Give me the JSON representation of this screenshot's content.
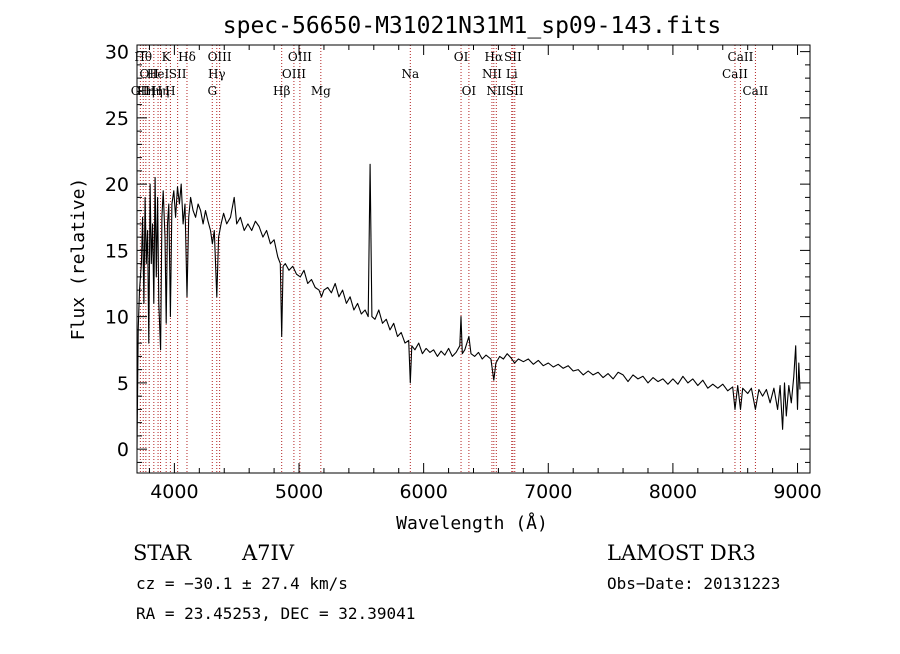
{
  "chart_data": {
    "type": "line",
    "title": "spec-56650-M31021N31M1_sp09-143.fits",
    "xlabel": "Wavelength (Å)",
    "ylabel": "Flux (relative)",
    "xlim": [
      3700,
      9100
    ],
    "ylim": [
      -1.8,
      30.5
    ],
    "xticks": [
      4000,
      5000,
      6000,
      7000,
      8000,
      9000
    ],
    "yticks": [
      0,
      5,
      10,
      15,
      20,
      25,
      30
    ],
    "lines": [
      {
        "wave": 3727,
        "label": "OII",
        "row": 2
      },
      {
        "wave": 3750,
        "label": "Hθ",
        "row": 0
      },
      {
        "wave": 3771,
        "label": "Hη",
        "row": 2
      },
      {
        "wave": 3798,
        "label": "OII",
        "row": 1
      },
      {
        "wave": 3835,
        "label": "Hη",
        "row": 2
      },
      {
        "wave": 3869,
        "label": "HeI",
        "row": 1
      },
      {
        "wave": 3889,
        "label": "Hη",
        "row": 2
      },
      {
        "wave": 3934,
        "label": "K",
        "row": 0
      },
      {
        "wave": 3968,
        "label": "H",
        "row": 2
      },
      {
        "wave": 4026,
        "label": "SII",
        "row": 1
      },
      {
        "wave": 4101,
        "label": "Hδ",
        "row": 0
      },
      {
        "wave": 4304,
        "label": "G",
        "row": 2
      },
      {
        "wave": 4340,
        "label": "Hγ",
        "row": 1
      },
      {
        "wave": 4363,
        "label": "OIII",
        "row": 0
      },
      {
        "wave": 4861,
        "label": "Hβ",
        "row": 2
      },
      {
        "wave": 4959,
        "label": "OIII",
        "row": 1
      },
      {
        "wave": 5007,
        "label": "OIII",
        "row": 0
      },
      {
        "wave": 5175,
        "label": "Mg",
        "row": 2
      },
      {
        "wave": 5893,
        "label": "Na",
        "row": 1
      },
      {
        "wave": 6300,
        "label": "OI",
        "row": 0
      },
      {
        "wave": 6363,
        "label": "OI",
        "row": 2
      },
      {
        "wave": 6548,
        "label": "NII",
        "row": 1
      },
      {
        "wave": 6563,
        "label": "Hα",
        "row": 0
      },
      {
        "wave": 6583,
        "label": "NII",
        "row": 2
      },
      {
        "wave": 6707,
        "label": "Li",
        "row": 1
      },
      {
        "wave": 6716,
        "label": "SII",
        "row": 0
      },
      {
        "wave": 6731,
        "label": "SII",
        "row": 2
      },
      {
        "wave": 8498,
        "label": "CaII",
        "row": 1
      },
      {
        "wave": 8542,
        "label": "CaII",
        "row": 0
      },
      {
        "wave": 8662,
        "label": "CaII",
        "row": 2
      }
    ],
    "series": [
      {
        "name": "flux",
        "points": [
          [
            3700,
            0.0
          ],
          [
            3710,
            9.0
          ],
          [
            3720,
            12.0
          ],
          [
            3735,
            14.0
          ],
          [
            3745,
            17.5
          ],
          [
            3755,
            11.0
          ],
          [
            3765,
            19.0
          ],
          [
            3775,
            14.0
          ],
          [
            3785,
            16.5
          ],
          [
            3795,
            8.0
          ],
          [
            3805,
            20.0
          ],
          [
            3815,
            14.0
          ],
          [
            3825,
            17.0
          ],
          [
            3835,
            11.0
          ],
          [
            3845,
            20.5
          ],
          [
            3855,
            13.0
          ],
          [
            3865,
            19.0
          ],
          [
            3875,
            11.0
          ],
          [
            3889,
            7.5
          ],
          [
            3900,
            17.5
          ],
          [
            3910,
            19.5
          ],
          [
            3925,
            16.0
          ],
          [
            3934,
            9.5
          ],
          [
            3945,
            17.0
          ],
          [
            3955,
            18.5
          ],
          [
            3968,
            10.0
          ],
          [
            3980,
            18.5
          ],
          [
            3995,
            19.5
          ],
          [
            4010,
            17.5
          ],
          [
            4025,
            19.8
          ],
          [
            4040,
            18.5
          ],
          [
            4055,
            20.0
          ],
          [
            4070,
            17.0
          ],
          [
            4085,
            18.5
          ],
          [
            4101,
            11.5
          ],
          [
            4115,
            17.5
          ],
          [
            4130,
            19.0
          ],
          [
            4150,
            18.0
          ],
          [
            4170,
            17.5
          ],
          [
            4190,
            18.5
          ],
          [
            4210,
            18.0
          ],
          [
            4230,
            17.0
          ],
          [
            4250,
            18.0
          ],
          [
            4270,
            17.2
          ],
          [
            4290,
            16.5
          ],
          [
            4305,
            15.5
          ],
          [
            4320,
            16.5
          ],
          [
            4340,
            11.5
          ],
          [
            4355,
            16.0
          ],
          [
            4375,
            17.0
          ],
          [
            4395,
            17.8
          ],
          [
            4420,
            17.0
          ],
          [
            4450,
            17.5
          ],
          [
            4480,
            19.0
          ],
          [
            4500,
            17.0
          ],
          [
            4530,
            17.5
          ],
          [
            4560,
            16.5
          ],
          [
            4590,
            17.0
          ],
          [
            4620,
            16.5
          ],
          [
            4650,
            17.2
          ],
          [
            4680,
            16.8
          ],
          [
            4710,
            16.0
          ],
          [
            4740,
            16.5
          ],
          [
            4770,
            15.5
          ],
          [
            4800,
            15.8
          ],
          [
            4830,
            14.5
          ],
          [
            4850,
            14.0
          ],
          [
            4861,
            8.5
          ],
          [
            4872,
            13.8
          ],
          [
            4890,
            14.0
          ],
          [
            4920,
            13.5
          ],
          [
            4950,
            13.8
          ],
          [
            4980,
            13.2
          ],
          [
            5010,
            13.0
          ],
          [
            5040,
            13.5
          ],
          [
            5070,
            12.5
          ],
          [
            5100,
            12.8
          ],
          [
            5130,
            12.2
          ],
          [
            5160,
            12.0
          ],
          [
            5180,
            11.5
          ],
          [
            5200,
            12.0
          ],
          [
            5230,
            12.2
          ],
          [
            5260,
            11.8
          ],
          [
            5290,
            12.5
          ],
          [
            5320,
            11.5
          ],
          [
            5350,
            12.0
          ],
          [
            5380,
            11.0
          ],
          [
            5410,
            11.5
          ],
          [
            5440,
            10.5
          ],
          [
            5470,
            11.0
          ],
          [
            5500,
            10.2
          ],
          [
            5530,
            10.5
          ],
          [
            5555,
            10.0
          ],
          [
            5570,
            21.5
          ],
          [
            5585,
            10.0
          ],
          [
            5610,
            9.8
          ],
          [
            5640,
            10.5
          ],
          [
            5670,
            9.5
          ],
          [
            5700,
            9.8
          ],
          [
            5730,
            9.0
          ],
          [
            5760,
            9.5
          ],
          [
            5790,
            8.5
          ],
          [
            5820,
            8.8
          ],
          [
            5850,
            8.0
          ],
          [
            5880,
            8.2
          ],
          [
            5893,
            5.0
          ],
          [
            5905,
            7.8
          ],
          [
            5930,
            7.5
          ],
          [
            5960,
            8.0
          ],
          [
            5990,
            7.2
          ],
          [
            6020,
            7.6
          ],
          [
            6050,
            7.3
          ],
          [
            6080,
            7.5
          ],
          [
            6110,
            7.0
          ],
          [
            6140,
            7.4
          ],
          [
            6170,
            7.1
          ],
          [
            6200,
            7.6
          ],
          [
            6230,
            7.0
          ],
          [
            6260,
            7.3
          ],
          [
            6290,
            7.8
          ],
          [
            6300,
            10.0
          ],
          [
            6310,
            7.2
          ],
          [
            6330,
            7.5
          ],
          [
            6363,
            8.5
          ],
          [
            6380,
            7.2
          ],
          [
            6410,
            7.0
          ],
          [
            6440,
            7.3
          ],
          [
            6470,
            6.8
          ],
          [
            6500,
            7.1
          ],
          [
            6540,
            6.8
          ],
          [
            6563,
            5.2
          ],
          [
            6580,
            6.5
          ],
          [
            6610,
            7.0
          ],
          [
            6640,
            6.8
          ],
          [
            6670,
            7.2
          ],
          [
            6700,
            6.9
          ],
          [
            6730,
            6.5
          ],
          [
            6760,
            6.8
          ],
          [
            6800,
            6.6
          ],
          [
            6840,
            6.8
          ],
          [
            6880,
            6.4
          ],
          [
            6920,
            6.7
          ],
          [
            6960,
            6.3
          ],
          [
            7000,
            6.5
          ],
          [
            7040,
            6.2
          ],
          [
            7080,
            6.4
          ],
          [
            7120,
            6.1
          ],
          [
            7160,
            6.3
          ],
          [
            7200,
            5.9
          ],
          [
            7240,
            6.0
          ],
          [
            7280,
            5.6
          ],
          [
            7320,
            5.9
          ],
          [
            7360,
            5.6
          ],
          [
            7400,
            5.8
          ],
          [
            7440,
            5.4
          ],
          [
            7480,
            5.7
          ],
          [
            7520,
            5.3
          ],
          [
            7560,
            5.8
          ],
          [
            7600,
            5.6
          ],
          [
            7640,
            5.1
          ],
          [
            7680,
            5.6
          ],
          [
            7720,
            5.3
          ],
          [
            7760,
            5.5
          ],
          [
            7800,
            5.0
          ],
          [
            7840,
            5.4
          ],
          [
            7880,
            5.1
          ],
          [
            7920,
            5.3
          ],
          [
            7960,
            4.9
          ],
          [
            8000,
            5.3
          ],
          [
            8040,
            4.9
          ],
          [
            8080,
            5.5
          ],
          [
            8120,
            5.0
          ],
          [
            8160,
            5.3
          ],
          [
            8200,
            4.8
          ],
          [
            8240,
            5.2
          ],
          [
            8280,
            4.6
          ],
          [
            8320,
            4.9
          ],
          [
            8360,
            4.6
          ],
          [
            8400,
            4.9
          ],
          [
            8440,
            4.4
          ],
          [
            8480,
            4.7
          ],
          [
            8498,
            3.0
          ],
          [
            8520,
            4.8
          ],
          [
            8542,
            3.0
          ],
          [
            8560,
            4.6
          ],
          [
            8600,
            4.2
          ],
          [
            8630,
            4.6
          ],
          [
            8662,
            3.0
          ],
          [
            8690,
            4.5
          ],
          [
            8720,
            4.0
          ],
          [
            8750,
            4.5
          ],
          [
            8780,
            3.5
          ],
          [
            8810,
            4.6
          ],
          [
            8840,
            3.0
          ],
          [
            8860,
            4.8
          ],
          [
            8880,
            1.5
          ],
          [
            8895,
            5.0
          ],
          [
            8910,
            2.5
          ],
          [
            8930,
            4.8
          ],
          [
            8950,
            3.5
          ],
          [
            8970,
            5.5
          ],
          [
            8985,
            7.8
          ],
          [
            9000,
            3.0
          ],
          [
            9010,
            6.5
          ],
          [
            9020,
            4.5
          ]
        ]
      }
    ]
  },
  "info": {
    "class": "STAR",
    "subclass": "A7IV",
    "survey": "LAMOST DR3",
    "cz": "cz = −30.1 ± 27.4 km/s",
    "obs_date": "Obs−Date: 20131223",
    "radec": "RA =  23.45253, DEC =  32.39041"
  }
}
